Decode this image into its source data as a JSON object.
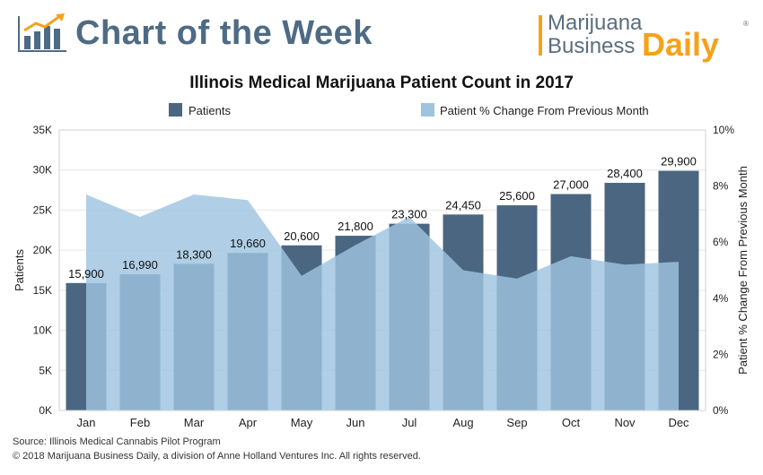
{
  "header": {
    "title": "Chart of the Week",
    "brand_line1": "Marijuana",
    "brand_line2a": "Business",
    "brand_line2b": "Daily",
    "brand_reg": "®",
    "icon": "bar-chart-trend-icon"
  },
  "colors": {
    "bars": "#4b6680",
    "area": "#9fc4e0",
    "title_text": "#4e6b86",
    "brand_orange": "#f5a21b"
  },
  "footer": {
    "source": "Source: Illinois Medical Cannabis Pilot Program",
    "copyright": "© 2018 Marijuana Business Daily, a division of Anne Holland Ventures Inc. All rights reserved."
  },
  "chart_data": {
    "type": "bar",
    "title": "Illinois Medical Marijuana Patient Count in 2017",
    "categories": [
      "Jan",
      "Feb",
      "Mar",
      "Apr",
      "May",
      "Jun",
      "Jul",
      "Aug",
      "Sep",
      "Oct",
      "Nov",
      "Dec"
    ],
    "series": [
      {
        "name": "Patients",
        "type": "bar",
        "axis": "left",
        "values": [
          15900,
          16990,
          18300,
          19660,
          20600,
          21800,
          23300,
          24450,
          25600,
          27000,
          28400,
          29900
        ],
        "labels": [
          "15,900",
          "16,990",
          "18,300",
          "19,660",
          "20,600",
          "21,800",
          "23,300",
          "24,450",
          "25,600",
          "27,000",
          "28,400",
          "29,900"
        ]
      },
      {
        "name": "Patient % Change From Previous Month",
        "type": "area",
        "axis": "right",
        "values": [
          7.7,
          6.9,
          7.7,
          7.5,
          4.8,
          5.9,
          6.9,
          5.0,
          4.7,
          5.5,
          5.2,
          5.3
        ]
      }
    ],
    "ylabel": "Patients",
    "y2label": "Patient % Change From Previous Month",
    "ylim": [
      0,
      35000
    ],
    "y2lim": [
      0,
      10
    ],
    "yticks": [
      0,
      5000,
      10000,
      15000,
      20000,
      25000,
      30000,
      35000
    ],
    "ytick_labels": [
      "0K",
      "5K",
      "10K",
      "15K",
      "20K",
      "25K",
      "30K",
      "35K"
    ],
    "y2ticks": [
      0,
      2,
      4,
      6,
      8,
      10
    ],
    "y2tick_labels": [
      "0%",
      "2%",
      "4%",
      "6%",
      "8%",
      "10%"
    ],
    "legend_position": "top",
    "grid": true
  }
}
